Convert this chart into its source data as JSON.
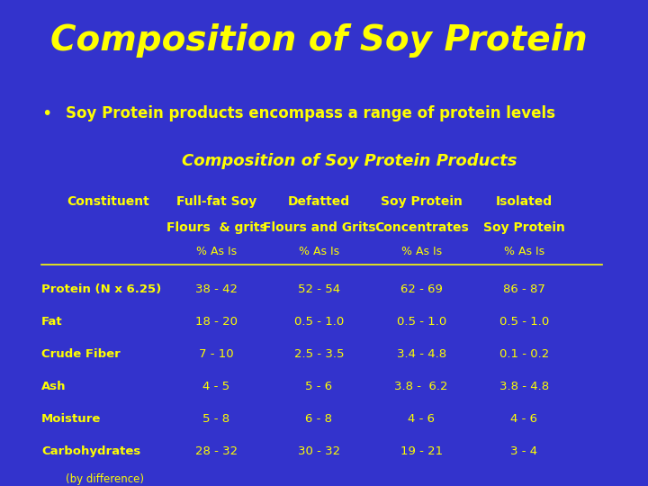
{
  "title": "Composition of Soy Protein",
  "bullet_text": "Soy Protein products encompass a range of protein levels",
  "subtitle": "Composition of Soy Protein Products",
  "bg_color": "#3333CC",
  "title_color": "#FFFF00",
  "text_color": "#FFFF00",
  "header_col1_line1": "Full-fat Soy",
  "header_col1_line2": "Flours  & grits",
  "header_col1_line3": "% As Is",
  "header_col2_line1": "Defatted",
  "header_col2_line2": "Flours and Grits",
  "header_col2_line3": "% As Is",
  "header_col3_line1": "Soy Protein",
  "header_col3_line2": "Concentrates",
  "header_col3_line3": "% As Is",
  "header_col4_line1": "Isolated",
  "header_col4_line2": "Soy Protein",
  "header_col4_line3": "% As Is",
  "col0_label": "Constituent",
  "rows": [
    [
      "Protein (N x 6.25)",
      "38 - 42",
      "52 - 54",
      "62 - 69",
      "86 - 87"
    ],
    [
      "Fat",
      "18 - 20",
      "0.5 - 1.0",
      "0.5 - 1.0",
      "0.5 - 1.0"
    ],
    [
      "Crude Fiber",
      "7 - 10",
      "2.5 - 3.5",
      "3.4 - 4.8",
      "0.1 - 0.2"
    ],
    [
      "Ash",
      "4 - 5",
      "5 - 6",
      "3.8 -  6.2",
      "3.8 - 4.8"
    ],
    [
      "Moisture",
      "5 - 8",
      "6 - 8",
      "4 - 6",
      "4 - 6"
    ],
    [
      "Carbohydrates",
      "28 - 32",
      "30 - 32",
      "19 - 21",
      "3 - 4"
    ]
  ],
  "footnote": "(by difference)"
}
